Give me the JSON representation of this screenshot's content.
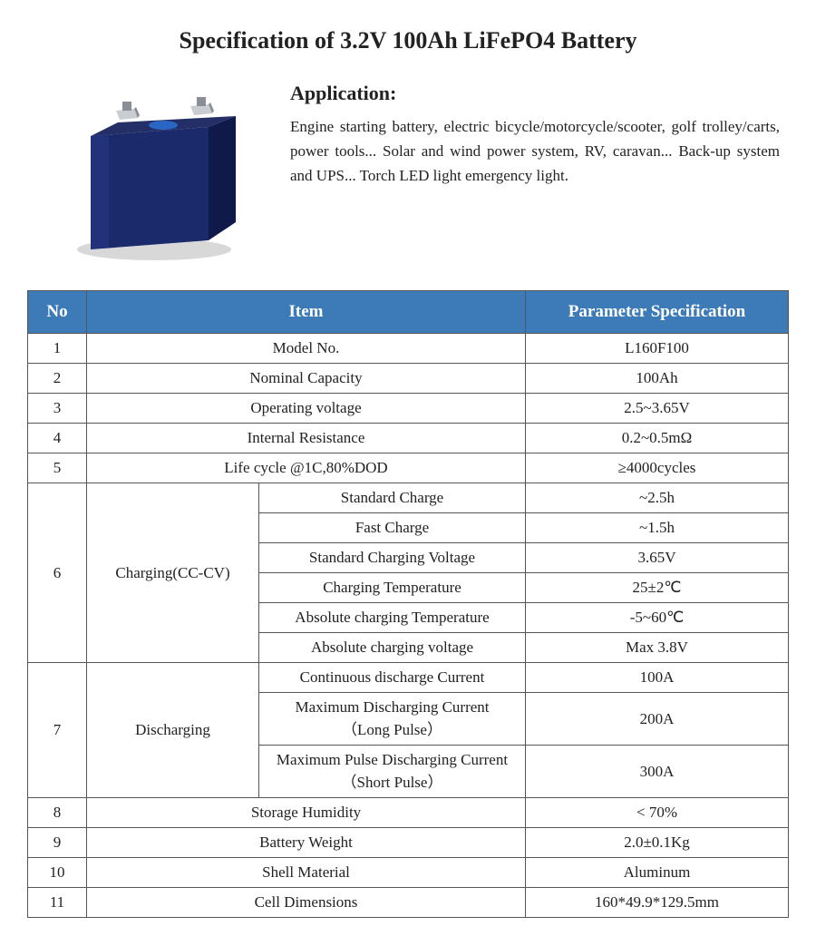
{
  "title": "Specification of 3.2V 100Ah LiFePO4 Battery",
  "application": {
    "heading": "Application:",
    "text": "Engine starting battery, electric bicycle/motorcycle/scooter, golf trolley/carts, power tools... Solar and wind power system, RV, caravan... Back-up system and UPS... Torch LED light emergency light."
  },
  "table": {
    "headers": {
      "no": "No",
      "item": "Item",
      "param": "Parameter Specification"
    },
    "header_bg": "#3d7bb8",
    "header_fg": "#ffffff",
    "border_color": "#555555",
    "rows_simple": [
      {
        "no": "1",
        "item": "Model No.",
        "param": "L160F100"
      },
      {
        "no": "2",
        "item": "Nominal Capacity",
        "param": "100Ah"
      },
      {
        "no": "3",
        "item": "Operating voltage",
        "param": "2.5~3.65V"
      },
      {
        "no": "4",
        "item": "Internal Resistance",
        "param": "0.2~0.5mΩ"
      },
      {
        "no": "5",
        "item": "Life cycle @1C,80%DOD",
        "param": "≥4000cycles"
      }
    ],
    "group_charging": {
      "no": "6",
      "label": "Charging(CC-CV)",
      "subs": [
        {
          "item": "Standard Charge",
          "param": "~2.5h"
        },
        {
          "item": "Fast Charge",
          "param": "~1.5h"
        },
        {
          "item": "Standard Charging Voltage",
          "param": "3.65V"
        },
        {
          "item": "Charging Temperature",
          "param": "25±2℃"
        },
        {
          "item": "Absolute charging Temperature",
          "param": "-5~60℃"
        },
        {
          "item": "Absolute charging voltage",
          "param": "Max 3.8V"
        }
      ]
    },
    "group_discharging": {
      "no": "7",
      "label": "Discharging",
      "subs": [
        {
          "item": "Continuous discharge Current",
          "param": "100A"
        },
        {
          "item": "Maximum Discharging Current\n（Long Pulse）",
          "param": "200A"
        },
        {
          "item": "Maximum Pulse Discharging Current\n（Short Pulse）",
          "param": "300A"
        }
      ]
    },
    "rows_tail": [
      {
        "no": "8",
        "item": "Storage Humidity",
        "param": "< 70%"
      },
      {
        "no": "9",
        "item": "Battery Weight",
        "param": "2.0±0.1Kg"
      },
      {
        "no": "10",
        "item": "Shell Material",
        "param": "Aluminum"
      },
      {
        "no": "11",
        "item": "Cell Dimensions",
        "param": "160*49.9*129.5mm"
      }
    ]
  },
  "battery_colors": {
    "body_dark": "#0f1a4a",
    "body_mid": "#1b2a6b",
    "body_light": "#2a3a8a",
    "top_face": "#232f66",
    "terminal": "#c9ccd1",
    "terminal_dark": "#8a8e96",
    "oval": "#2a66c4",
    "shadow": "#d8d8d8"
  }
}
